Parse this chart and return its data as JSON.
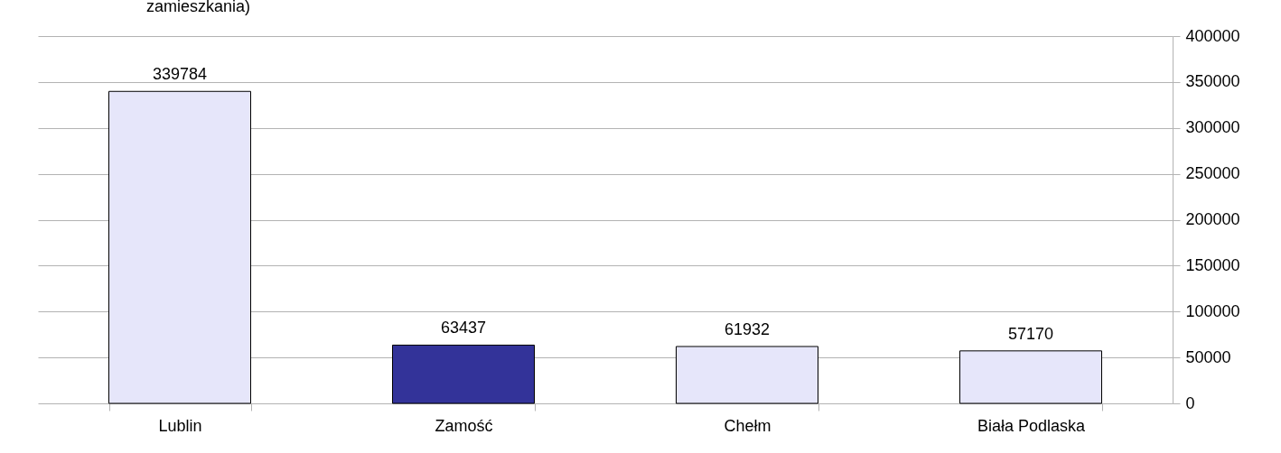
{
  "chart_data": {
    "type": "bar",
    "title": "zamieszkania)",
    "categories": [
      "Lublin",
      "Zamość",
      "Chełm",
      "Biała Podlaska"
    ],
    "values": [
      339784,
      63437,
      61932,
      57170
    ],
    "colors": [
      "#e6e6fa",
      "#333399",
      "#e6e6fa",
      "#e6e6fa"
    ],
    "ylim": [
      0,
      400000
    ],
    "yticks": [
      0,
      50000,
      100000,
      150000,
      200000,
      250000,
      300000,
      350000,
      400000
    ],
    "grid": "y",
    "data_labels": true
  }
}
